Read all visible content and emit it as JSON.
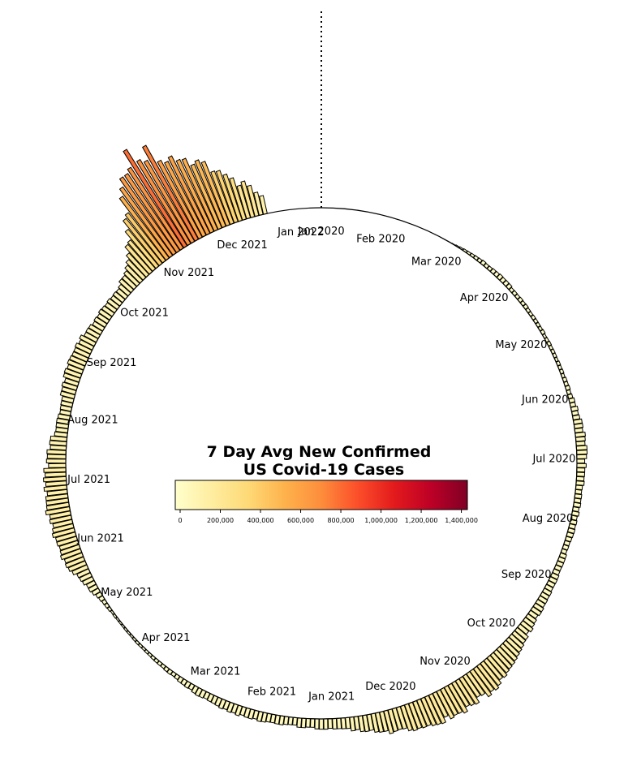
{
  "chart_data": {
    "type": "bar",
    "layout": "radial",
    "title_lines": [
      "7 Day Avg New Confirmed",
      "US Covid-19 Cases"
    ],
    "month_labels": [
      "Jan 2020",
      "Feb 2020",
      "Mar 2020",
      "Apr 2020",
      "May 2020",
      "Jun 2020",
      "Jul 2020",
      "Aug 2020",
      "Sep 2020",
      "Oct 2020",
      "Nov 2020",
      "Dec 2020",
      "Jan 2021",
      "Feb 2021",
      "Mar 2021",
      "Apr 2021",
      "May 2021",
      "Jun 2021",
      "Jul 2021",
      "Aug 2021",
      "Sep 2021",
      "Oct 2021",
      "Nov 2021",
      "Dec 2021",
      "Jan 2022"
    ],
    "weekly_values": {
      "start": "2020-01-01",
      "interval_days": 7,
      "values": [
        0,
        0,
        0,
        0,
        0,
        0,
        0,
        0,
        0,
        1000,
        15000,
        25000,
        28000,
        32000,
        27000,
        26000,
        23000,
        22000,
        21000,
        20000,
        21000,
        24000,
        30000,
        45000,
        60000,
        67000,
        65000,
        55000,
        48000,
        45000,
        43000,
        41000,
        38000,
        42000,
        50000,
        55000,
        60000,
        70000,
        90000,
        120000,
        160000,
        185000,
        200000,
        195000,
        215000,
        210000,
        195000,
        180000,
        160000,
        145000,
        110000,
        85000,
        68000,
        65000,
        60000,
        58000,
        62000,
        64000,
        66000,
        63000,
        55000,
        50000,
        40000,
        30000,
        23000,
        19000,
        16000,
        13000,
        12000,
        16000,
        30000,
        60000,
        95000,
        130000,
        145000,
        150000,
        165000,
        162000,
        152000,
        140000,
        120000,
        100000,
        85000,
        80000,
        95000,
        110000,
        120000,
        115000,
        100000,
        90000,
        80000,
        82000,
        118000,
        175000,
        310000,
        560000,
        750000,
        690000,
        620000,
        490000,
        350000,
        250000,
        140000
      ]
    },
    "colorbar": {
      "ticks": [
        "0",
        "200,000",
        "400,000",
        "600,000",
        "800,000",
        "1,000,000",
        "1,200,000",
        "1,400,000"
      ],
      "range": [
        0,
        1430000
      ],
      "colormap": "YlOrRd",
      "colors": [
        "#ffffcc",
        "#ffeda0",
        "#fed976",
        "#feb24c",
        "#fd8d3c",
        "#fc4e2a",
        "#e31a1c",
        "#bd0026",
        "#800026"
      ]
    },
    "start_marker": "dotted vertical line at Jan 2020"
  }
}
